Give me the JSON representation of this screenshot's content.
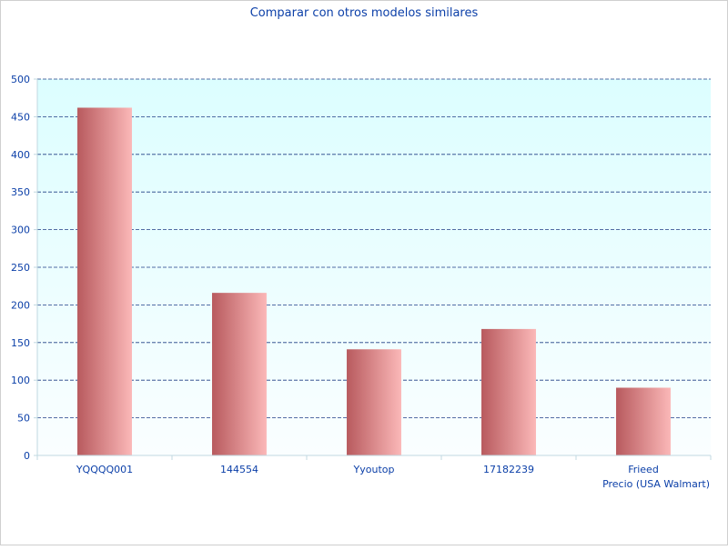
{
  "chart_data": {
    "type": "bar",
    "title": "Comparar con otros modelos similares",
    "xlabel": "Precio (USA Walmart)",
    "ylabel": "",
    "categories": [
      "YQQQQ001",
      "144554",
      "Yyoutop",
      "17182239",
      "Frieed"
    ],
    "values": [
      462,
      216,
      141,
      168,
      90
    ],
    "ylim": [
      0,
      500
    ],
    "yticks": [
      0,
      50,
      100,
      150,
      200,
      250,
      300,
      350,
      400,
      450,
      500
    ],
    "grid": true,
    "legend": "none",
    "colors": {
      "bar_dark": "#b85a5e",
      "bar_light": "#fbb8b8",
      "plot_bg_top": "#dcfeff",
      "plot_bg_bottom": "#fafeff",
      "text": "#0b3fa8",
      "grid": "#1f3d85",
      "axis": "#c0d8e0"
    }
  }
}
